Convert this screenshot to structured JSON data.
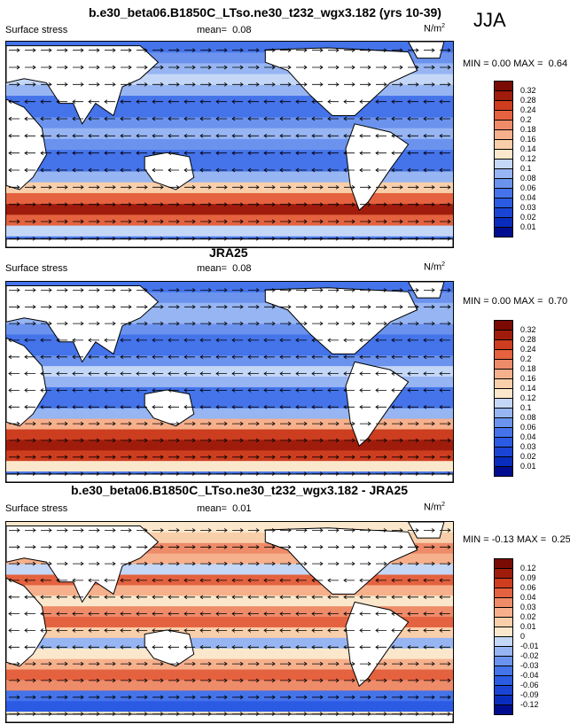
{
  "season": "JJA",
  "colors": {
    "land": "#ffffff",
    "coast": "#000000",
    "arrow": "#000000"
  },
  "chart_data": [
    {
      "type": "heatmap",
      "title": "b.e30_beta06.B1850C_LTso.ne30_t232_wgx3.182 (yrs 10-39)",
      "variable": "Surface stress",
      "mean_label": "mean=",
      "mean": "0.08",
      "units": "N/m",
      "units_sup": "2",
      "min_label": "MIN =",
      "min": "0.00",
      "max_label": "MAX =",
      "max": "0.64",
      "colorbar_levels": [
        "0.01",
        "0.02",
        "0.03",
        "0.04",
        "0.06",
        "0.08",
        "0.1",
        "0.12",
        "0.14",
        "0.16",
        "0.18",
        "0.2",
        "0.24",
        "0.28",
        "0.32"
      ],
      "colorbar_colors": [
        "#000c8f",
        "#0a2cbd",
        "#1a44d4",
        "#2b5be2",
        "#4473ea",
        "#6b93ee",
        "#96b5f2",
        "#c4d7f7",
        "#fbe8cc",
        "#f9cfab",
        "#f6b08c",
        "#ee8b69",
        "#e4623f",
        "#cd3d1f",
        "#9f1c0c",
        "#7a0a04"
      ],
      "zonal_pattern": [
        0.05,
        0.07,
        0.09,
        0.1,
        0.08,
        0.05,
        0.04,
        0.06,
        0.09,
        0.07,
        0.05,
        0.05,
        0.08,
        0.14,
        0.22,
        0.28,
        0.22,
        0.1,
        0.05
      ]
    },
    {
      "type": "heatmap",
      "title": "JRA25",
      "variable": "Surface stress",
      "mean_label": "mean=",
      "mean": "0.08",
      "units": "N/m",
      "units_sup": "2",
      "min_label": "MIN =",
      "min": "0.00",
      "max_label": "MAX =",
      "max": "0.70",
      "colorbar_levels": [
        "0.01",
        "0.02",
        "0.03",
        "0.04",
        "0.06",
        "0.08",
        "0.1",
        "0.12",
        "0.14",
        "0.16",
        "0.18",
        "0.2",
        "0.24",
        "0.28",
        "0.32"
      ],
      "colorbar_colors": [
        "#000c8f",
        "#0a2cbd",
        "#1a44d4",
        "#2b5be2",
        "#4473ea",
        "#6b93ee",
        "#96b5f2",
        "#c4d7f7",
        "#fbe8cc",
        "#f9cfab",
        "#f6b08c",
        "#ee8b69",
        "#e4623f",
        "#cd3d1f",
        "#9f1c0c",
        "#7a0a04"
      ],
      "zonal_pattern": [
        0.05,
        0.06,
        0.08,
        0.09,
        0.07,
        0.05,
        0.04,
        0.07,
        0.1,
        0.08,
        0.05,
        0.05,
        0.09,
        0.16,
        0.26,
        0.3,
        0.24,
        0.12,
        0.05
      ]
    },
    {
      "type": "heatmap",
      "title": "b.e30_beta06.B1850C_LTso.ne30_t232_wgx3.182 - JRA25",
      "variable": "Surface stress",
      "mean_label": "mean=",
      "mean": "0.01",
      "units": "N/m",
      "units_sup": "2",
      "min_label": "MIN =",
      "min": "-0.13",
      "max_label": "MAX =",
      "max": "0.25",
      "colorbar_levels": [
        "-0.12",
        "-0.09",
        "-0.06",
        "-0.04",
        "-0.03",
        "-0.02",
        "-0.01",
        "0",
        "0.01",
        "0.02",
        "0.03",
        "0.04",
        "0.06",
        "0.09",
        "0.12"
      ],
      "colorbar_colors": [
        "#000c8f",
        "#0a2cbd",
        "#1a44d4",
        "#2b5be2",
        "#4473ea",
        "#6b93ee",
        "#96b5f2",
        "#c4d7f7",
        "#fbe8cc",
        "#f9cfab",
        "#f6b08c",
        "#ee8b69",
        "#e4623f",
        "#cd3d1f",
        "#9f1c0c",
        "#7a0a04"
      ],
      "zonal_pattern": [
        0.0,
        0.01,
        0.03,
        0.02,
        -0.01,
        0.04,
        0.02,
        0.0,
        0.03,
        0.04,
        0.01,
        -0.02,
        0.0,
        0.02,
        0.05,
        0.03,
        -0.04,
        -0.06,
        0.0
      ]
    }
  ]
}
